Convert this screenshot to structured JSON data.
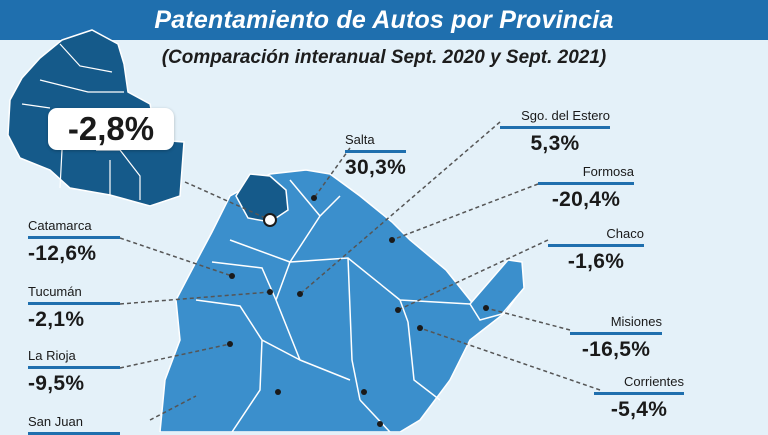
{
  "header": {
    "title": "Patentamiento de Autos por Provincia",
    "subtitle": "(Comparación interanual Sept. 2020 y Sept. 2021)"
  },
  "inset": {
    "value": "-2,8%"
  },
  "provinces": {
    "salta": {
      "name": "Salta",
      "value": "30,3%"
    },
    "sgo_estero": {
      "name": "Sgo. del Estero",
      "value": "5,3%"
    },
    "formosa": {
      "name": "Formosa",
      "value": "-20,4%"
    },
    "chaco": {
      "name": "Chaco",
      "value": "-1,6%"
    },
    "misiones": {
      "name": "Misiones",
      "value": "-16,5%"
    },
    "corrientes": {
      "name": "Corrientes",
      "value": "-5,4%"
    },
    "catamarca": {
      "name": "Catamarca",
      "value": "-12,6%"
    },
    "tucuman": {
      "name": "Tucumán",
      "value": "-2,1%"
    },
    "la_rioja": {
      "name": "La Rioja",
      "value": "-9,5%"
    },
    "san_juan": {
      "name": "San Juan",
      "value": ""
    }
  },
  "colors": {
    "background": "#e4f1f9",
    "header": "#1f6fae",
    "map_light": "#3b8fcc",
    "map_dark": "#155a8a",
    "borders": "#ffffff"
  }
}
